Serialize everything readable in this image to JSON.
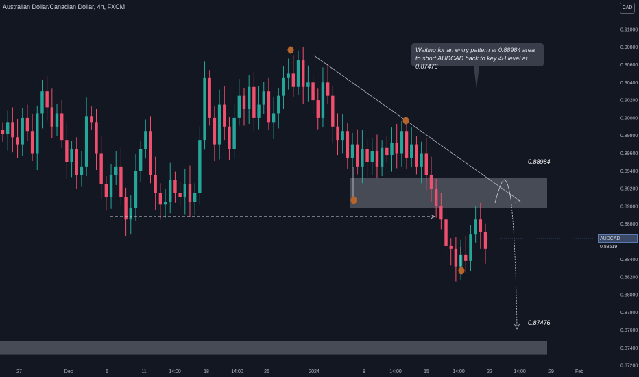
{
  "header": {
    "title": "Australian Dollar/Canadian Dollar, 4h, FXCM",
    "currency_button": "CAD"
  },
  "annotation": {
    "text": "Waiting for an entry pattern at 0.88984 area to short AUDCAD back to key 4H level at 0.87476"
  },
  "levels": {
    "upper_label": "0.88984",
    "lower_label": "0.87476"
  },
  "price_tag": {
    "symbol": "AUDCAD",
    "value": "0.88519"
  },
  "colors": {
    "background": "#131722",
    "bull": "#26a69a",
    "bear": "#f0506e",
    "zone": "#5a5e68",
    "marker": "#b5652b"
  },
  "chart_data": {
    "type": "candlestick",
    "title": "Australian Dollar/Canadian Dollar, 4h, FXCM",
    "ylim": [
      0.872,
      0.9112
    ],
    "y_ticks": [
      "0.91000",
      "0.90800",
      "0.90600",
      "0.90400",
      "0.90200",
      "0.90000",
      "0.89800",
      "0.89600",
      "0.89400",
      "0.89200",
      "0.89000",
      "0.88800",
      "0.88600",
      "0.88400",
      "0.88200",
      "0.88000",
      "0.87800",
      "0.87600",
      "0.87400",
      "0.87200"
    ],
    "x_ticks": [
      "27",
      "Dec",
      "6",
      "11",
      "14:00",
      "18",
      "14:00",
      "26",
      "2024",
      "8",
      "14:00",
      "15",
      "14:00",
      "22",
      "14:00",
      "29",
      "Feb"
    ],
    "zones": [
      {
        "label": "0.88984",
        "low": 0.8898,
        "high": 0.8932
      },
      {
        "label": "0.87476",
        "low": 0.8732,
        "high": 0.8748
      }
    ],
    "closes": [
      0.8982,
      0.8995,
      0.8978,
      0.897,
      0.9,
      0.8985,
      0.896,
      0.9005,
      0.903,
      0.9012,
      0.899,
      0.9005,
      0.8975,
      0.895,
      0.8965,
      0.8935,
      0.8945,
      0.9002,
      0.8995,
      0.896,
      0.8925,
      0.891,
      0.8935,
      0.8945,
      0.891,
      0.8885,
      0.8898,
      0.894,
      0.8965,
      0.8985,
      0.8935,
      0.8915,
      0.8902,
      0.8905,
      0.893,
      0.8915,
      0.891,
      0.8925,
      0.8905,
      0.8915,
      0.8975,
      0.9045,
      0.9,
      0.897,
      0.9015,
      0.899,
      0.8965,
      0.9,
      0.9025,
      0.901,
      0.9035,
      0.9,
      0.9015,
      0.903,
      0.8995,
      0.9005,
      0.9025,
      0.9045,
      0.905,
      0.9035,
      0.9065,
      0.9035,
      0.904,
      0.902,
      0.9,
      0.904,
      0.9025,
      0.899,
      0.8975,
      0.8985,
      0.8955,
      0.897,
      0.8945,
      0.8965,
      0.895,
      0.8962,
      0.8945,
      0.8966,
      0.8958,
      0.8972,
      0.896,
      0.8985,
      0.8955,
      0.897,
      0.8945,
      0.896,
      0.8935,
      0.892,
      0.89,
      0.8885,
      0.8855,
      0.8852,
      0.8832,
      0.8845,
      0.8838,
      0.8868,
      0.8885,
      0.8871,
      0.8852
    ],
    "highs_lows": {
      "swing_highs": [
        0.9065,
        0.8985
      ],
      "swing_lows": [
        0.8895,
        0.8815
      ]
    },
    "markers": [
      {
        "x": "26 Dec",
        "y": 0.9065
      },
      {
        "x": "2024 wk2",
        "y": 0.8895
      },
      {
        "x": "15 Jan",
        "y": 0.8985
      },
      {
        "x": "19 Jan",
        "y": 0.8815
      }
    ],
    "trendline": {
      "from": 0.9058,
      "to": 0.889
    },
    "support_arrow_level": 0.8877
  }
}
